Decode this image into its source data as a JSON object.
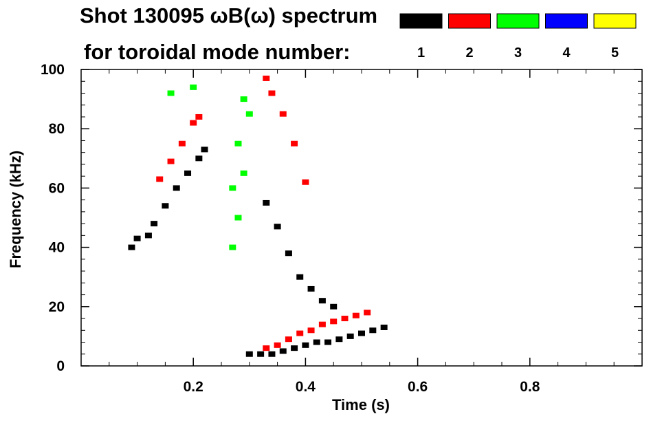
{
  "chart_data": {
    "type": "scatter",
    "title_line1": "Shot 130095 ωB(ω) spectrum",
    "title_line2": "for toroidal mode number:",
    "xlabel": "Time (s)",
    "ylabel": "Frequency (kHz)",
    "xlim": [
      0.0,
      1.0
    ],
    "ylim": [
      0,
      100
    ],
    "x_ticks": [
      0.2,
      0.4,
      0.6,
      0.8
    ],
    "x_tick_labels": [
      "0.2",
      "0.4",
      "0.6",
      "0.8"
    ],
    "y_ticks": [
      0,
      20,
      40,
      60,
      80,
      100
    ],
    "y_tick_labels": [
      "0",
      "20",
      "40",
      "60",
      "80",
      "100"
    ],
    "grid": false,
    "legend_position": "top-right",
    "series": [
      {
        "name": "1",
        "color": "#000000",
        "x": [
          0.09,
          0.1,
          0.12,
          0.13,
          0.15,
          0.17,
          0.19,
          0.21,
          0.22,
          0.3,
          0.32,
          0.34,
          0.36,
          0.38,
          0.4,
          0.42,
          0.44,
          0.46,
          0.48,
          0.5,
          0.52,
          0.54,
          0.33,
          0.35,
          0.37,
          0.39,
          0.41,
          0.43,
          0.45
        ],
        "y": [
          40,
          43,
          44,
          48,
          54,
          60,
          65,
          70,
          73,
          4,
          4,
          4,
          5,
          6,
          7,
          8,
          8,
          9,
          10,
          11,
          12,
          13,
          55,
          47,
          38,
          30,
          26,
          22,
          20
        ]
      },
      {
        "name": "2",
        "color": "#ff0000",
        "x": [
          0.14,
          0.16,
          0.18,
          0.2,
          0.21,
          0.33,
          0.35,
          0.37,
          0.39,
          0.41,
          0.43,
          0.45,
          0.47,
          0.49,
          0.51,
          0.33,
          0.34,
          0.36,
          0.38,
          0.4
        ],
        "y": [
          63,
          69,
          75,
          82,
          84,
          6,
          7,
          9,
          11,
          12,
          14,
          15,
          16,
          17,
          18,
          97,
          92,
          85,
          75,
          62
        ]
      },
      {
        "name": "3",
        "color": "#00ff00",
        "x": [
          0.27,
          0.27,
          0.28,
          0.28,
          0.29,
          0.29,
          0.3,
          0.16,
          0.2
        ],
        "y": [
          40,
          60,
          50,
          75,
          65,
          90,
          85,
          92,
          94
        ]
      },
      {
        "name": "4",
        "color": "#0000ff",
        "x": [],
        "y": []
      },
      {
        "name": "5",
        "color": "#ffff00",
        "x": [],
        "y": []
      }
    ]
  }
}
